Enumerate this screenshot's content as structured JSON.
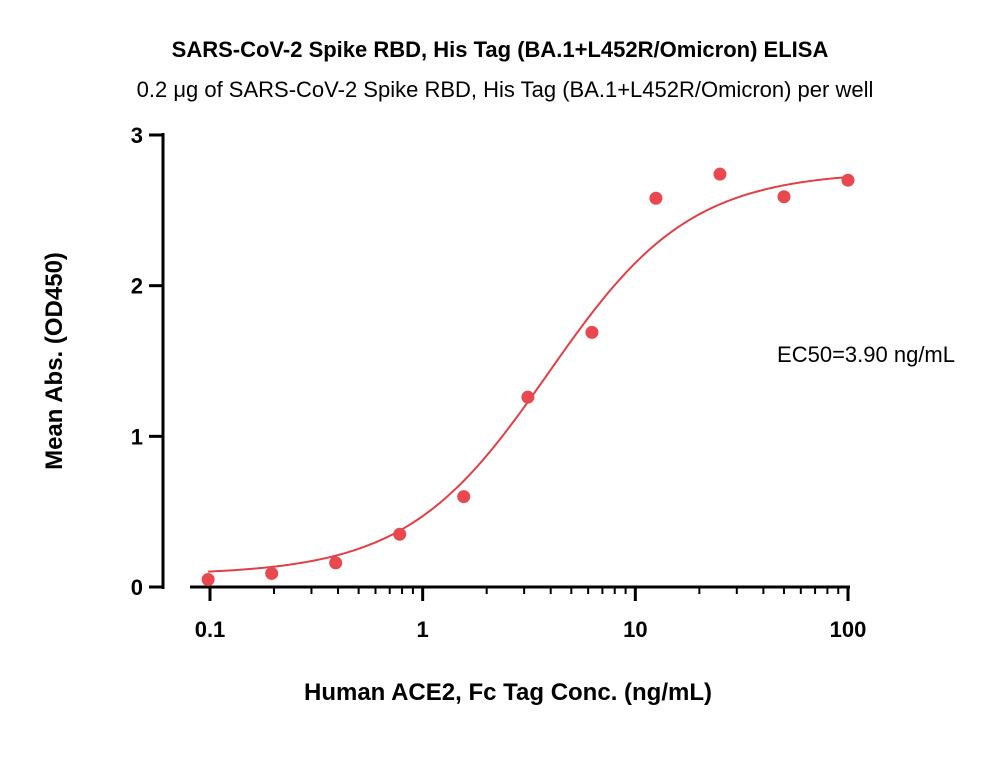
{
  "chart_data": {
    "type": "scatter",
    "title": "SARS-CoV-2 Spike RBD, His Tag (BA.1+L452R/Omicron) ELISA",
    "subtitle": "0.2 μg of SARS-CoV-2 Spike RBD, His Tag (BA.1+L452R/Omicron) per well",
    "xlabel": "Human ACE2, Fc Tag Conc. (ng/mL)",
    "ylabel": "Mean Abs. (OD450)",
    "x_scale": "log",
    "xlim": [
      0.1,
      100
    ],
    "ylim": [
      0,
      3
    ],
    "x_ticks": [
      {
        "value": 0.1,
        "label": "0.1"
      },
      {
        "value": 1,
        "label": "1"
      },
      {
        "value": 10,
        "label": "10"
      },
      {
        "value": 100,
        "label": "100"
      }
    ],
    "y_ticks": [
      {
        "value": 0,
        "label": "0"
      },
      {
        "value": 1,
        "label": "1"
      },
      {
        "value": 2,
        "label": "2"
      },
      {
        "value": 3,
        "label": "3"
      }
    ],
    "points": [
      {
        "x": 0.098,
        "y": 0.05
      },
      {
        "x": 0.195,
        "y": 0.09
      },
      {
        "x": 0.39,
        "y": 0.16
      },
      {
        "x": 0.78,
        "y": 0.35
      },
      {
        "x": 1.56,
        "y": 0.6
      },
      {
        "x": 3.125,
        "y": 1.26
      },
      {
        "x": 6.25,
        "y": 1.69
      },
      {
        "x": 12.5,
        "y": 2.58
      },
      {
        "x": 25,
        "y": 2.74
      },
      {
        "x": 50,
        "y": 2.59
      },
      {
        "x": 100,
        "y": 2.7
      }
    ],
    "fit": {
      "model": "4PL",
      "bottom": 0.08,
      "top": 2.76,
      "ec50": 3.9,
      "hill": 1.3
    },
    "annotation": "EC50=3.90 ng/mL",
    "marker_color": "#e8484e",
    "line_color": "#e04045",
    "grid": false,
    "legend": "none"
  }
}
